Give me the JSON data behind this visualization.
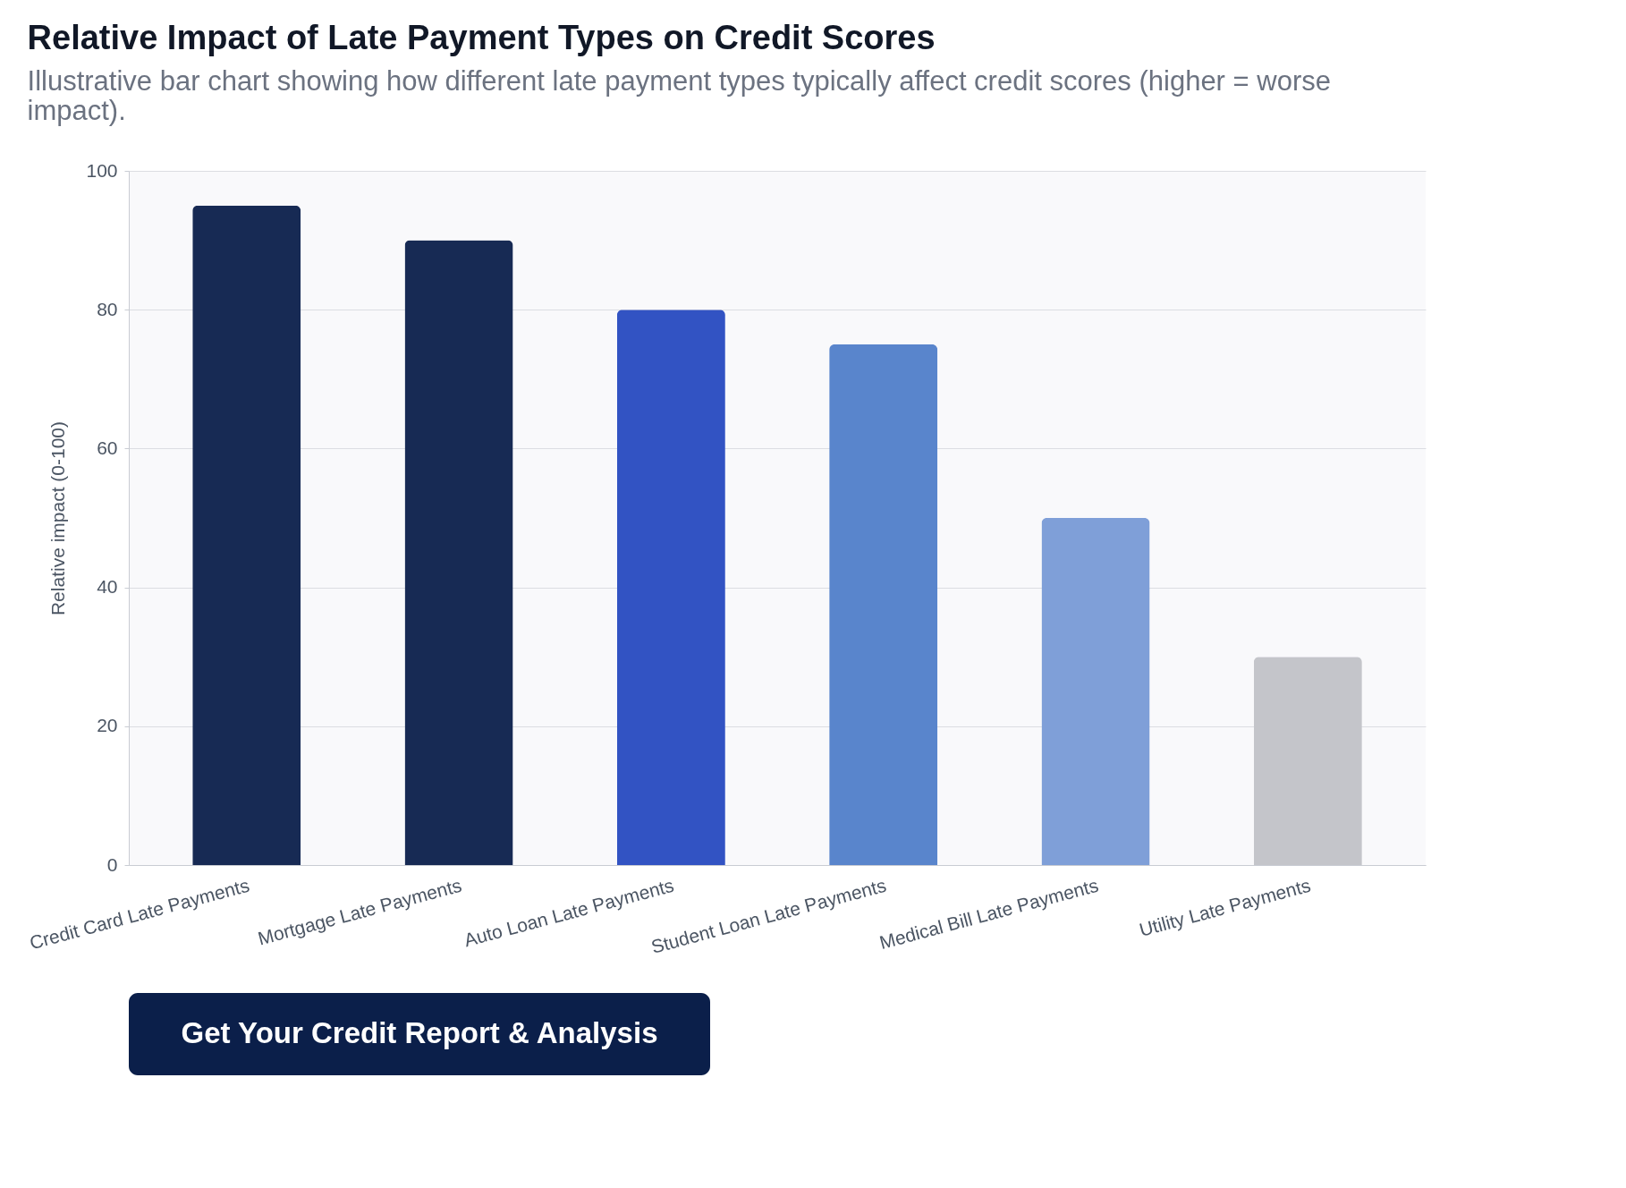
{
  "chart_data": {
    "type": "bar",
    "title": "Relative Impact of Late Payment Types on Credit Scores",
    "subtitle": "Illustrative bar chart showing how different late payment types typically affect credit scores (higher = worse impact).",
    "ylabel": "Relative impact (0-100)",
    "categories": [
      "Credit Card Late Payments",
      "Mortgage Late Payments",
      "Auto Loan Late Payments",
      "Student Loan Late Payments",
      "Medical Bill Late Payments",
      "Utility Late Payments"
    ],
    "values": [
      95,
      90,
      80,
      75,
      50,
      30
    ],
    "colors": [
      "#172a54",
      "#172a54",
      "#3253c3",
      "#5985cc",
      "#7f9fd8",
      "#c4c5ca"
    ],
    "ylim": [
      0,
      100
    ],
    "yticks": [
      0,
      20,
      40,
      60,
      80,
      100
    ],
    "grid": "y",
    "annotations": [
      "Get Your Credit Report & Analysis"
    ]
  }
}
